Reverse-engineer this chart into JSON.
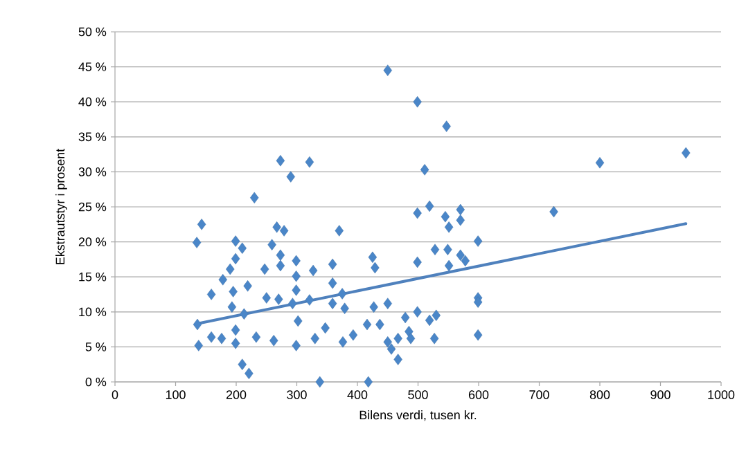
{
  "chart_data": {
    "type": "scatter",
    "xlabel": "Bilens verdi, tusen kr.",
    "ylabel": "Ekstrautstyr i prosent",
    "xlim": [
      0,
      1000
    ],
    "xticks": [
      0,
      100,
      200,
      300,
      400,
      500,
      600,
      700,
      800,
      900,
      1000
    ],
    "ylim": [
      0,
      50
    ],
    "yticks": [
      {
        "value": 0,
        "label": "0 %"
      },
      {
        "value": 5,
        "label": "5 %"
      },
      {
        "value": 10,
        "label": "10 %"
      },
      {
        "value": 15,
        "label": "15 %"
      },
      {
        "value": 20,
        "label": "20 %"
      },
      {
        "value": 25,
        "label": "25 %"
      },
      {
        "value": 30,
        "label": "30 %"
      },
      {
        "value": 35,
        "label": "35 %"
      },
      {
        "value": 40,
        "label": "40 %"
      },
      {
        "value": 45,
        "label": "45 %"
      },
      {
        "value": 50,
        "label": "50 %"
      }
    ],
    "grid": "y",
    "legend": false,
    "marker": "diamond",
    "series": [
      {
        "color": "#4a86c8",
        "x": [
          135,
          143,
          138,
          136,
          159,
          159,
          176,
          178,
          190,
          199,
          199,
          210,
          195,
          193,
          199,
          199,
          210,
          221,
          219,
          213,
          230,
          233,
          247,
          250,
          259,
          262,
          270,
          267,
          273,
          279,
          273,
          273,
          290,
          299,
          299,
          299,
          293,
          302,
          299,
          321,
          327,
          321,
          330,
          338,
          359,
          370,
          359,
          375,
          379,
          359,
          347,
          376,
          393,
          418,
          425,
          429,
          427,
          416,
          437,
          450,
          450,
          456,
          450,
          467,
          467,
          479,
          485,
          488,
          499,
          499,
          499,
          499,
          511,
          519,
          519,
          528,
          530,
          527,
          547,
          545,
          551,
          549,
          551,
          570,
          570,
          570,
          578,
          599,
          599,
          599,
          599,
          724,
          800,
          942
        ],
        "values": [
          19.9,
          22.5,
          5.2,
          8.2,
          12.5,
          6.4,
          6.2,
          14.6,
          16.1,
          20.1,
          17.6,
          19.1,
          12.9,
          10.7,
          7.4,
          5.5,
          2.5,
          1.2,
          13.7,
          9.7,
          26.3,
          6.4,
          16.1,
          12.0,
          19.6,
          5.9,
          11.8,
          22.1,
          31.6,
          21.6,
          18.1,
          16.6,
          29.3,
          17.3,
          15.1,
          13.1,
          11.2,
          8.7,
          5.2,
          31.4,
          15.9,
          11.7,
          6.2,
          0,
          16.8,
          21.6,
          14.1,
          12.6,
          10.5,
          11.2,
          7.7,
          5.7,
          6.7,
          0,
          17.8,
          16.3,
          10.7,
          8.2,
          8.2,
          44.5,
          11.2,
          4.7,
          5.7,
          3.2,
          6.2,
          9.2,
          7.2,
          6.2,
          40.0,
          24.1,
          17.1,
          10.0,
          30.3,
          25.1,
          8.8,
          18.9,
          9.5,
          6.2,
          36.5,
          23.6,
          22.1,
          18.9,
          16.6,
          24.6,
          23.1,
          18.1,
          17.3,
          20.1,
          12.0,
          11.4,
          6.7,
          24.3,
          31.3,
          32.7
        ]
      },
      {
        "type": "line",
        "color": "#4f81bd",
        "marker": "none",
        "x": [
          135,
          942
        ],
        "values": [
          8.3,
          22.6
        ]
      }
    ]
  }
}
